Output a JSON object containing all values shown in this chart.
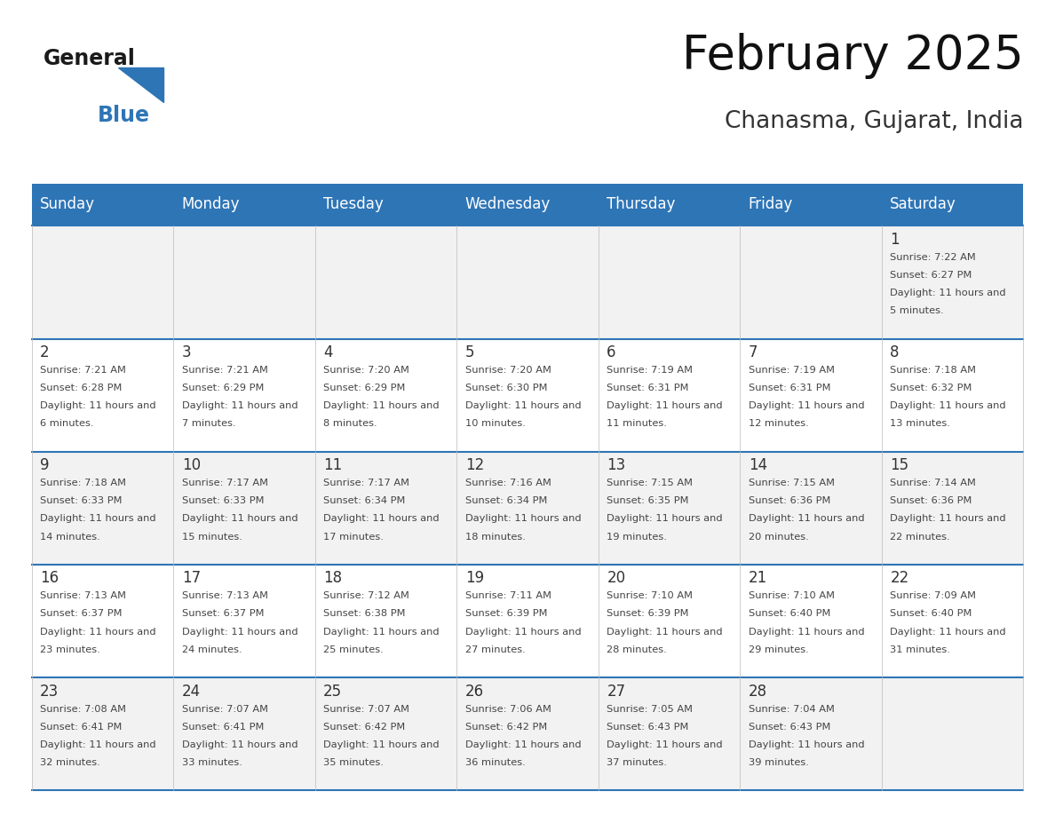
{
  "title": "February 2025",
  "subtitle": "Chanasma, Gujarat, India",
  "header_bg": "#2E75B6",
  "header_text_color": "#FFFFFF",
  "day_names": [
    "Sunday",
    "Monday",
    "Tuesday",
    "Wednesday",
    "Thursday",
    "Friday",
    "Saturday"
  ],
  "row_bg_odd": "#F2F2F2",
  "row_bg_even": "#FFFFFF",
  "cell_border_color": "#2E75B6",
  "date_color": "#333333",
  "info_color": "#444444",
  "calendar": [
    [
      {
        "day": null,
        "sunrise": null,
        "sunset": null,
        "daylight": null
      },
      {
        "day": null,
        "sunrise": null,
        "sunset": null,
        "daylight": null
      },
      {
        "day": null,
        "sunrise": null,
        "sunset": null,
        "daylight": null
      },
      {
        "day": null,
        "sunrise": null,
        "sunset": null,
        "daylight": null
      },
      {
        "day": null,
        "sunrise": null,
        "sunset": null,
        "daylight": null
      },
      {
        "day": null,
        "sunrise": null,
        "sunset": null,
        "daylight": null
      },
      {
        "day": 1,
        "sunrise": "7:22 AM",
        "sunset": "6:27 PM",
        "daylight": "11 hours and 5 minutes."
      }
    ],
    [
      {
        "day": 2,
        "sunrise": "7:21 AM",
        "sunset": "6:28 PM",
        "daylight": "11 hours and 6 minutes."
      },
      {
        "day": 3,
        "sunrise": "7:21 AM",
        "sunset": "6:29 PM",
        "daylight": "11 hours and 7 minutes."
      },
      {
        "day": 4,
        "sunrise": "7:20 AM",
        "sunset": "6:29 PM",
        "daylight": "11 hours and 8 minutes."
      },
      {
        "day": 5,
        "sunrise": "7:20 AM",
        "sunset": "6:30 PM",
        "daylight": "11 hours and 10 minutes."
      },
      {
        "day": 6,
        "sunrise": "7:19 AM",
        "sunset": "6:31 PM",
        "daylight": "11 hours and 11 minutes."
      },
      {
        "day": 7,
        "sunrise": "7:19 AM",
        "sunset": "6:31 PM",
        "daylight": "11 hours and 12 minutes."
      },
      {
        "day": 8,
        "sunrise": "7:18 AM",
        "sunset": "6:32 PM",
        "daylight": "11 hours and 13 minutes."
      }
    ],
    [
      {
        "day": 9,
        "sunrise": "7:18 AM",
        "sunset": "6:33 PM",
        "daylight": "11 hours and 14 minutes."
      },
      {
        "day": 10,
        "sunrise": "7:17 AM",
        "sunset": "6:33 PM",
        "daylight": "11 hours and 15 minutes."
      },
      {
        "day": 11,
        "sunrise": "7:17 AM",
        "sunset": "6:34 PM",
        "daylight": "11 hours and 17 minutes."
      },
      {
        "day": 12,
        "sunrise": "7:16 AM",
        "sunset": "6:34 PM",
        "daylight": "11 hours and 18 minutes."
      },
      {
        "day": 13,
        "sunrise": "7:15 AM",
        "sunset": "6:35 PM",
        "daylight": "11 hours and 19 minutes."
      },
      {
        "day": 14,
        "sunrise": "7:15 AM",
        "sunset": "6:36 PM",
        "daylight": "11 hours and 20 minutes."
      },
      {
        "day": 15,
        "sunrise": "7:14 AM",
        "sunset": "6:36 PM",
        "daylight": "11 hours and 22 minutes."
      }
    ],
    [
      {
        "day": 16,
        "sunrise": "7:13 AM",
        "sunset": "6:37 PM",
        "daylight": "11 hours and 23 minutes."
      },
      {
        "day": 17,
        "sunrise": "7:13 AM",
        "sunset": "6:37 PM",
        "daylight": "11 hours and 24 minutes."
      },
      {
        "day": 18,
        "sunrise": "7:12 AM",
        "sunset": "6:38 PM",
        "daylight": "11 hours and 25 minutes."
      },
      {
        "day": 19,
        "sunrise": "7:11 AM",
        "sunset": "6:39 PM",
        "daylight": "11 hours and 27 minutes."
      },
      {
        "day": 20,
        "sunrise": "7:10 AM",
        "sunset": "6:39 PM",
        "daylight": "11 hours and 28 minutes."
      },
      {
        "day": 21,
        "sunrise": "7:10 AM",
        "sunset": "6:40 PM",
        "daylight": "11 hours and 29 minutes."
      },
      {
        "day": 22,
        "sunrise": "7:09 AM",
        "sunset": "6:40 PM",
        "daylight": "11 hours and 31 minutes."
      }
    ],
    [
      {
        "day": 23,
        "sunrise": "7:08 AM",
        "sunset": "6:41 PM",
        "daylight": "11 hours and 32 minutes."
      },
      {
        "day": 24,
        "sunrise": "7:07 AM",
        "sunset": "6:41 PM",
        "daylight": "11 hours and 33 minutes."
      },
      {
        "day": 25,
        "sunrise": "7:07 AM",
        "sunset": "6:42 PM",
        "daylight": "11 hours and 35 minutes."
      },
      {
        "day": 26,
        "sunrise": "7:06 AM",
        "sunset": "6:42 PM",
        "daylight": "11 hours and 36 minutes."
      },
      {
        "day": 27,
        "sunrise": "7:05 AM",
        "sunset": "6:43 PM",
        "daylight": "11 hours and 37 minutes."
      },
      {
        "day": 28,
        "sunrise": "7:04 AM",
        "sunset": "6:43 PM",
        "daylight": "11 hours and 39 minutes."
      },
      {
        "day": null,
        "sunrise": null,
        "sunset": null,
        "daylight": null
      }
    ]
  ],
  "logo_text_general": "General",
  "logo_text_blue": "Blue",
  "logo_triangle_color": "#2E75B6",
  "logo_general_color": "#1a1a1a"
}
